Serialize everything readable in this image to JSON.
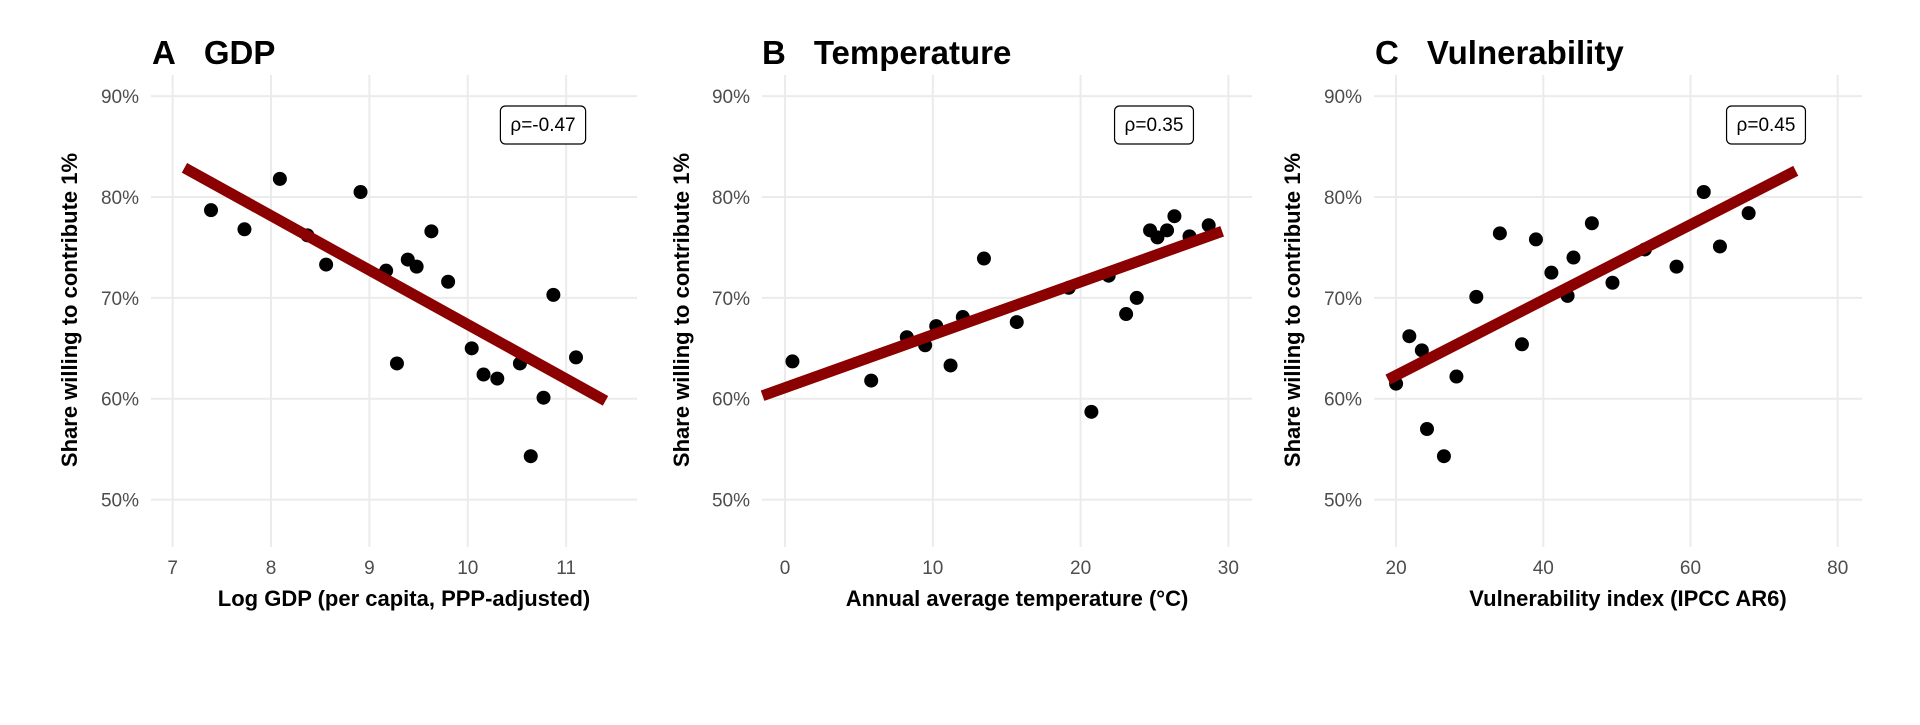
{
  "chart_data": [
    {
      "type": "scatter",
      "panel_letter": "A",
      "title": "GDP",
      "xlabel": "Log GDP (per capita, PPP-adjusted)",
      "ylabel": "Share willing to contribute 1%",
      "xlim": [
        6.78,
        11.72
      ],
      "ylim": [
        45.3,
        92.1
      ],
      "xticks": [
        7,
        8,
        9,
        10,
        11
      ],
      "xtick_labels": [
        "7",
        "8",
        "9",
        "10",
        "11"
      ],
      "yticks": [
        50,
        60,
        70,
        80,
        90
      ],
      "ytick_labels": [
        "50%",
        "60%",
        "70%",
        "80%",
        "90%"
      ],
      "grid": true,
      "annotation": "ρ=-0.47",
      "points": [
        [
          7.39,
          78.7
        ],
        [
          7.73,
          76.8
        ],
        [
          8.09,
          81.8
        ],
        [
          8.37,
          76.2
        ],
        [
          8.56,
          73.3
        ],
        [
          8.91,
          80.5
        ],
        [
          9.17,
          72.7
        ],
        [
          9.28,
          63.5
        ],
        [
          9.39,
          73.8
        ],
        [
          9.48,
          73.1
        ],
        [
          9.63,
          76.6
        ],
        [
          9.8,
          71.6
        ],
        [
          10.04,
          65.0
        ],
        [
          10.16,
          62.4
        ],
        [
          10.3,
          62.0
        ],
        [
          10.53,
          63.5
        ],
        [
          10.87,
          70.3
        ],
        [
          10.77,
          60.1
        ],
        [
          10.64,
          54.3
        ],
        [
          11.1,
          64.1
        ]
      ],
      "fit_line": [
        [
          7.12,
          82.9
        ],
        [
          11.4,
          59.8
        ]
      ]
    },
    {
      "type": "scatter",
      "panel_letter": "B",
      "title": "Temperature",
      "xlabel": "Annual average temperature (°C)",
      "ylabel": "Share willing to contribute 1%",
      "xlim": [
        -1.56,
        31.6
      ],
      "ylim": [
        45.3,
        92.1
      ],
      "xticks": [
        0,
        10,
        20,
        30
      ],
      "xtick_labels": [
        "0",
        "10",
        "20",
        "30"
      ],
      "yticks": [
        50,
        60,
        70,
        80,
        90
      ],
      "ytick_labels": [
        "50%",
        "60%",
        "70%",
        "80%",
        "90%"
      ],
      "grid": true,
      "annotation": "ρ=0.35",
      "points": [
        [
          0.5,
          63.7
        ],
        [
          5.83,
          61.8
        ],
        [
          8.24,
          66.1
        ],
        [
          9.48,
          65.3
        ],
        [
          10.23,
          67.2
        ],
        [
          11.2,
          63.3
        ],
        [
          12.03,
          68.1
        ],
        [
          13.46,
          73.9
        ],
        [
          15.68,
          67.6
        ],
        [
          19.2,
          71.0
        ],
        [
          20.73,
          58.7
        ],
        [
          21.9,
          72.2
        ],
        [
          23.08,
          68.4
        ],
        [
          23.8,
          70.0
        ],
        [
          24.7,
          76.7
        ],
        [
          25.2,
          76.0
        ],
        [
          25.85,
          76.7
        ],
        [
          26.35,
          78.1
        ],
        [
          27.37,
          76.1
        ],
        [
          28.67,
          77.2
        ]
      ],
      "fit_line": [
        [
          -1.52,
          60.3
        ],
        [
          29.58,
          76.6
        ]
      ]
    },
    {
      "type": "scatter",
      "panel_letter": "C",
      "title": "Vulnerability",
      "xlabel": "Vulnerability index (IPCC AR6)",
      "ylabel": "Share willing to contribute 1%",
      "xlim": [
        17.0,
        83.3
      ],
      "ylim": [
        45.3,
        92.1
      ],
      "xticks": [
        20,
        40,
        60,
        80
      ],
      "xtick_labels": [
        "20",
        "40",
        "60",
        "80"
      ],
      "yticks": [
        50,
        60,
        70,
        80,
        90
      ],
      "ytick_labels": [
        "50%",
        "60%",
        "70%",
        "80%",
        "90%"
      ],
      "grid": true,
      "annotation": "ρ=0.45",
      "points": [
        [
          20.0,
          61.5
        ],
        [
          21.8,
          66.2
        ],
        [
          23.5,
          64.8
        ],
        [
          24.2,
          57.0
        ],
        [
          26.5,
          54.3
        ],
        [
          28.2,
          62.2
        ],
        [
          30.9,
          70.1
        ],
        [
          34.1,
          76.4
        ],
        [
          37.1,
          65.4
        ],
        [
          39.0,
          75.8
        ],
        [
          41.1,
          72.5
        ],
        [
          43.3,
          70.2
        ],
        [
          44.1,
          74.0
        ],
        [
          46.6,
          77.4
        ],
        [
          49.4,
          71.5
        ],
        [
          53.8,
          74.8
        ],
        [
          58.1,
          73.1
        ],
        [
          61.8,
          80.5
        ],
        [
          64.0,
          75.1
        ],
        [
          67.9,
          78.4
        ]
      ],
      "fit_line": [
        [
          18.9,
          61.9
        ],
        [
          74.3,
          82.6
        ]
      ]
    }
  ],
  "colors": {
    "points": "#000000",
    "fit_line": "#8b0000",
    "grid": "#ebebeb",
    "tick_text": "#4d4d4d"
  }
}
